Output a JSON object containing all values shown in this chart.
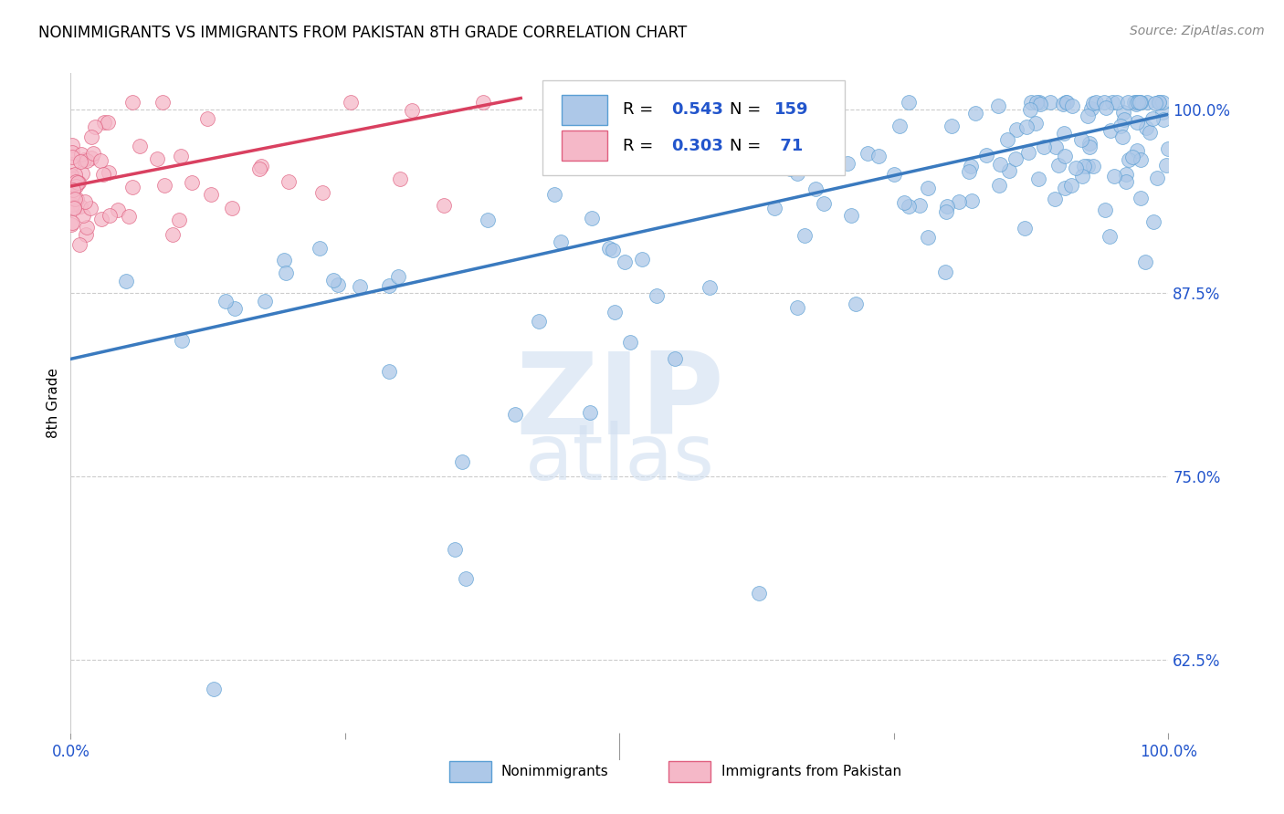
{
  "title": "NONIMMIGRANTS VS IMMIGRANTS FROM PAKISTAN 8TH GRADE CORRELATION CHART",
  "source": "Source: ZipAtlas.com",
  "ylabel": "8th Grade",
  "blue_color": "#adc8e8",
  "blue_edge_color": "#5a9fd4",
  "pink_color": "#f5b8c8",
  "pink_edge_color": "#e06080",
  "blue_line_color": "#3a7abf",
  "pink_line_color": "#d94060",
  "legend_text_color": "#2255cc",
  "xlim": [
    0.0,
    1.0
  ],
  "ylim": [
    0.575,
    1.025
  ],
  "yticks": [
    0.625,
    0.75,
    0.875,
    1.0
  ],
  "ytick_labels": [
    "62.5%",
    "75.0%",
    "87.5%",
    "100.0%"
  ],
  "blue_line": [
    0.0,
    0.83,
    1.0,
    0.997
  ],
  "pink_line": [
    -0.02,
    0.945,
    0.41,
    1.008
  ],
  "watermark_color": "#d0dff0"
}
